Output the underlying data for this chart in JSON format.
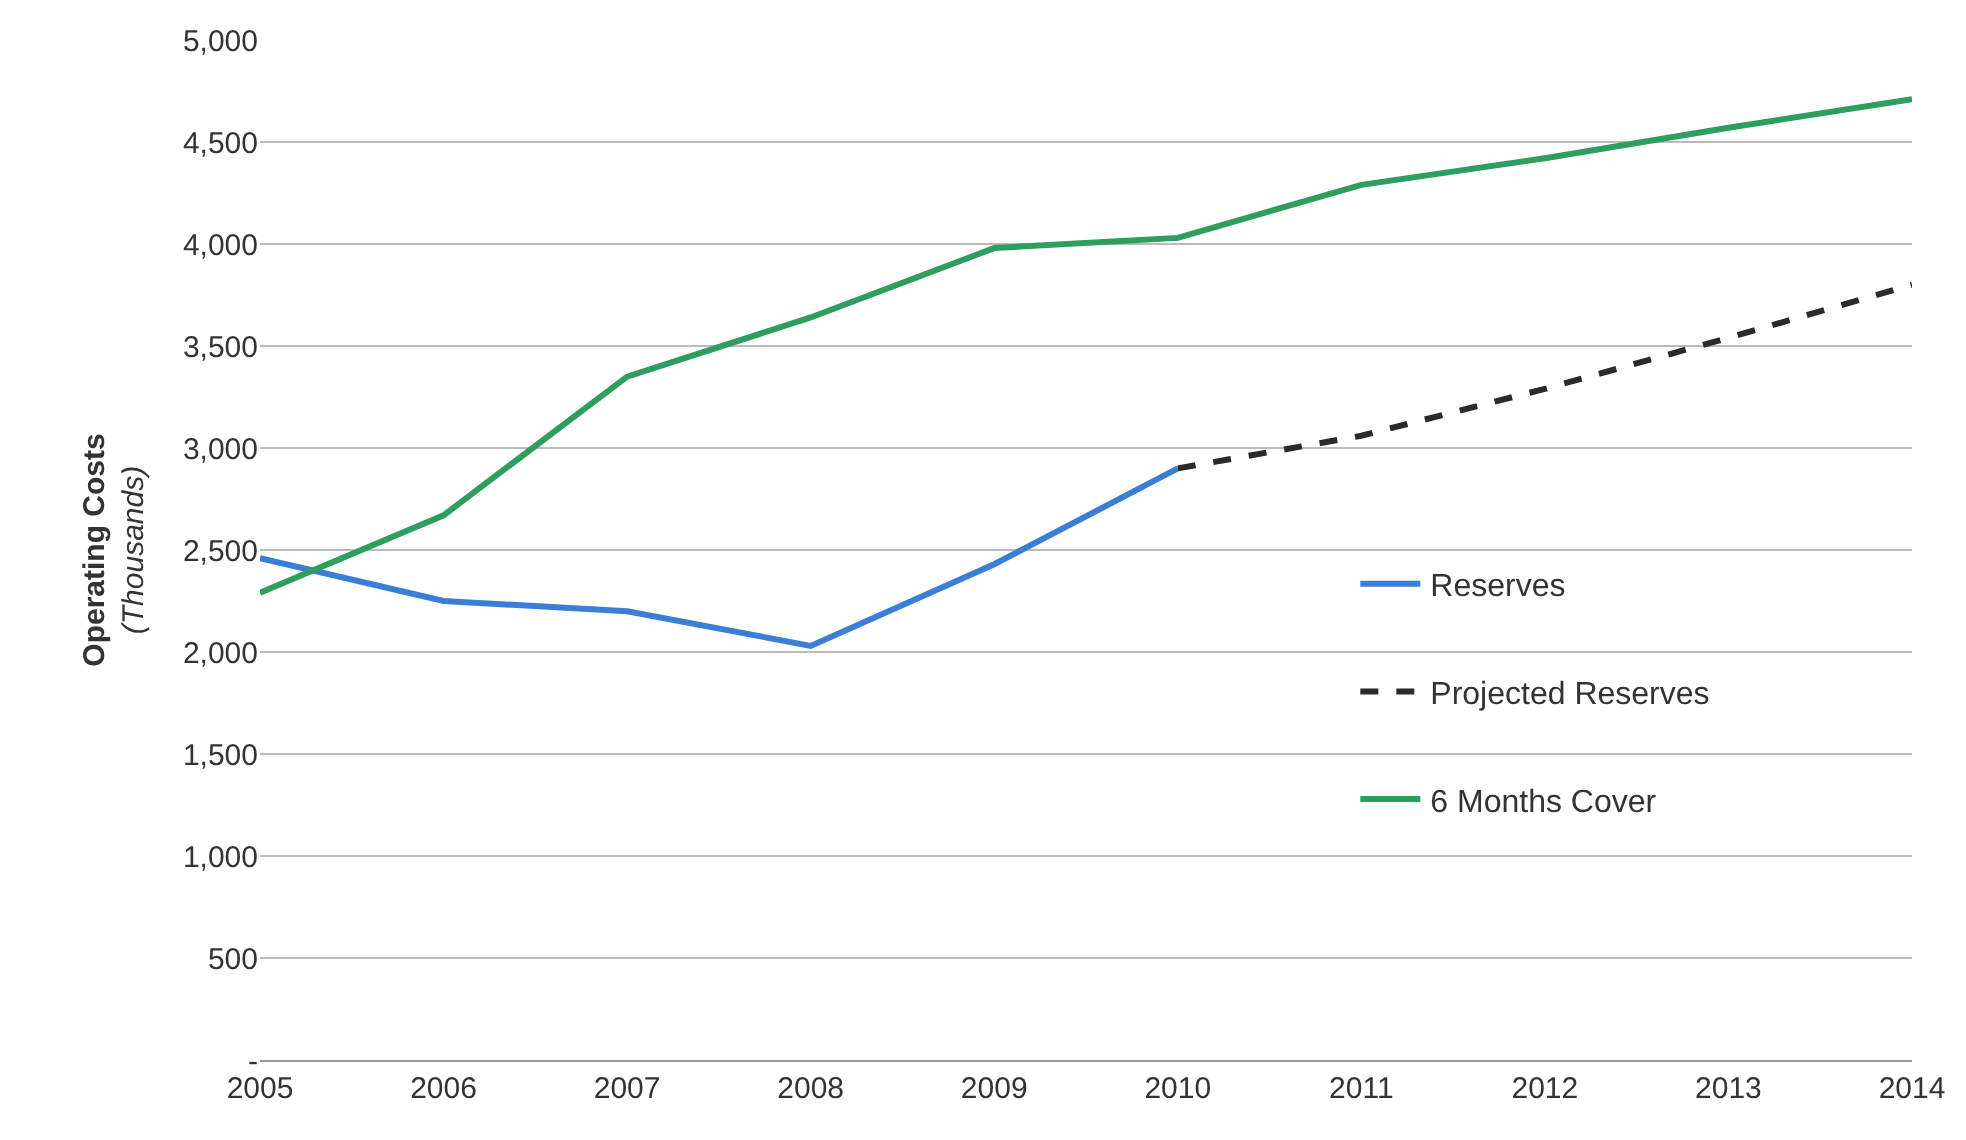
{
  "chart_data": {
    "type": "line",
    "categories": [
      "2005",
      "2006",
      "2007",
      "2008",
      "2009",
      "2010",
      "2011",
      "2012",
      "2013",
      "2014"
    ],
    "ylabel": "Operating Costs\n(Thousands)",
    "ylim": [
      0,
      5000
    ],
    "yticks": [
      {
        "value": 0,
        "label": "-"
      },
      500,
      {
        "value": 1000,
        "label": "1,000"
      },
      {
        "value": 1500,
        "label": "1,500"
      },
      {
        "value": 2000,
        "label": "2,000"
      },
      {
        "value": 2500,
        "label": "2,500"
      },
      {
        "value": 3000,
        "label": "3,000"
      },
      {
        "value": 3500,
        "label": "3,500"
      },
      {
        "value": 4000,
        "label": "4,000"
      },
      {
        "value": 4500,
        "label": "4,500"
      },
      {
        "value": 5000,
        "label": "5,000"
      }
    ],
    "grid": "y",
    "legend": "bottom right",
    "marker": "none",
    "series": [
      {
        "name": "Reserves",
        "color": "#3a7fd5",
        "line_style": "solid",
        "values": [
          2460,
          2250,
          2200,
          2030,
          2430,
          2900,
          null,
          null,
          null,
          null
        ]
      },
      {
        "name": "Projected Reserves",
        "color": "#2a2a2a",
        "line_style": "dashed",
        "values": [
          null,
          null,
          null,
          null,
          null,
          2900,
          3060,
          3290,
          3540,
          3800
        ]
      },
      {
        "name": "6 Months Cover",
        "color": "#2e9e5e",
        "line_style": "solid",
        "values": [
          2290,
          2670,
          3350,
          3640,
          3980,
          4030,
          4290,
          4420,
          4570,
          4710
        ]
      }
    ]
  }
}
